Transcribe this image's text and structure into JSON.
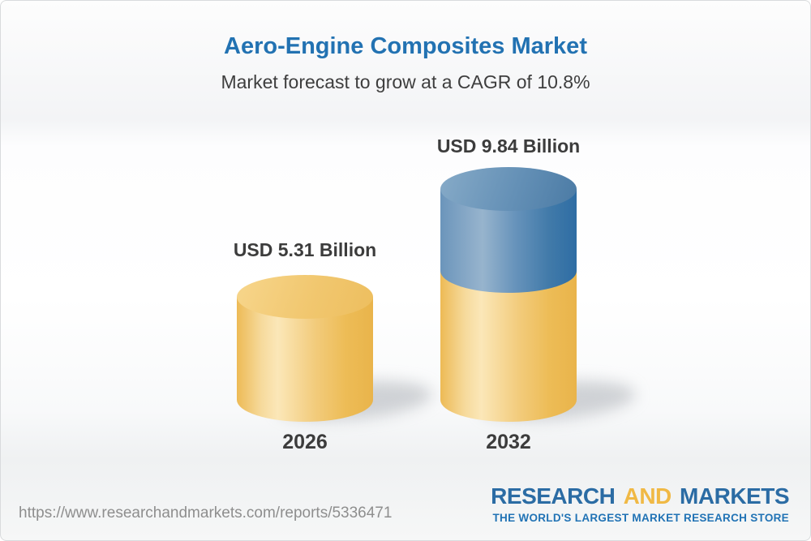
{
  "header": {
    "title": "Aero-Engine Composites Market",
    "subtitle": "Market forecast to grow at a CAGR of 10.8%"
  },
  "chart_data": {
    "type": "bar",
    "subtype": "3d-cylinder",
    "title": "Aero-Engine Composites Market",
    "subtitle": "Market forecast to grow at a CAGR of 10.8%",
    "cagr_percent": 10.8,
    "unit": "USD Billion",
    "categories": [
      "2026",
      "2032"
    ],
    "values": [
      5.31,
      9.84
    ],
    "value_labels": [
      "USD 5.31 Billion",
      "USD 9.84 Billion"
    ],
    "series": [
      {
        "name": "2026 market size",
        "value": 5.31,
        "color": "#f0c467"
      },
      {
        "name": "2032 market size",
        "value": 9.84,
        "segment_colors": [
          "#f0c467",
          "#4a7ba7"
        ],
        "note": "gold base with blue growth segment stacked on top"
      }
    ],
    "legend": "none",
    "axes": "none"
  },
  "colors": {
    "title_blue": "#2272b2",
    "text_dark": "#3c3c3c",
    "bar_gold": "#f0c467",
    "bar_blue": "#4a7ba7",
    "url_gray": "#8e8e8e",
    "logo_blue": "#2b6ca4",
    "logo_gold": "#f0b945"
  },
  "footer": {
    "url": "https://www.researchandmarkets.com/reports/5336471",
    "logo": {
      "research": "RESEARCH",
      "and": "AND",
      "markets": "MARKETS",
      "tagline": "THE WORLD'S LARGEST MARKET RESEARCH STORE"
    }
  }
}
